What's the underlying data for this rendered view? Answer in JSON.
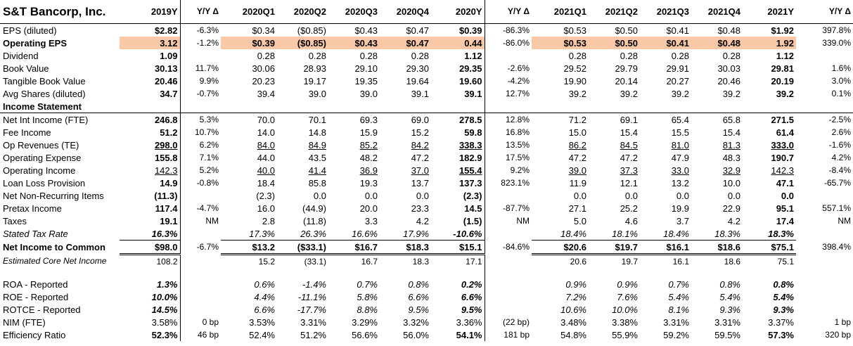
{
  "title": "S&T Bancorp, Inc.",
  "columns": [
    "2019Y",
    "Y/Y Δ",
    "2020Q1",
    "2020Q2",
    "2020Q3",
    "2020Q4",
    "2020Y",
    "Y/Y Δ",
    "2021Q1",
    "2021Q2",
    "2021Q3",
    "2021Q4",
    "2021Y",
    "Y/Y Δ"
  ],
  "highlight_color": "#f9c8a6",
  "rows": {
    "eps": {
      "label": "EPS (diluted)",
      "v": [
        "$2.82",
        "-6.3%",
        "$0.34",
        "($0.85)",
        "$0.43",
        "$0.47",
        "$0.39",
        "-86.3%",
        "$0.53",
        "$0.50",
        "$0.41",
        "$0.48",
        "$1.92",
        "397.8%"
      ]
    },
    "opeps": {
      "label": "Operating EPS",
      "v": [
        "3.12",
        "-1.2%",
        "$0.39",
        "($0.85)",
        "$0.43",
        "$0.47",
        "0.44",
        "-86.0%",
        "$0.53",
        "$0.50",
        "$0.41",
        "$0.48",
        "1.92",
        "339.0%"
      ]
    },
    "div": {
      "label": "Dividend",
      "v": [
        "1.09",
        "",
        "0.28",
        "0.28",
        "0.28",
        "0.28",
        "1.12",
        "",
        "0.28",
        "0.28",
        "0.28",
        "0.28",
        "1.12",
        ""
      ]
    },
    "bv": {
      "label": "Book Value",
      "v": [
        "30.13",
        "11.7%",
        "30.06",
        "28.93",
        "29.10",
        "29.30",
        "29.35",
        "-2.6%",
        "29.52",
        "29.79",
        "29.91",
        "30.03",
        "29.81",
        "1.6%"
      ]
    },
    "tbv": {
      "label": "Tangible Book Value",
      "v": [
        "20.46",
        "9.9%",
        "20.23",
        "19.17",
        "19.35",
        "19.64",
        "19.60",
        "-4.2%",
        "19.90",
        "20.14",
        "20.27",
        "20.46",
        "20.19",
        "3.0%"
      ]
    },
    "shares": {
      "label": "Avg Shares (diluted)",
      "v": [
        "34.7",
        "-0.7%",
        "39.4",
        "39.0",
        "39.0",
        "39.1",
        "39.1",
        "12.7%",
        "39.2",
        "39.2",
        "39.2",
        "39.2",
        "39.2",
        "0.1%"
      ]
    },
    "is": {
      "label": "Income Statement"
    },
    "nii": {
      "label": "Net Int Income (FTE)",
      "v": [
        "246.8",
        "5.3%",
        "70.0",
        "70.1",
        "69.3",
        "69.0",
        "278.5",
        "12.8%",
        "71.2",
        "69.1",
        "65.4",
        "65.8",
        "271.5",
        "-2.5%"
      ]
    },
    "fee": {
      "label": "Fee Income",
      "v": [
        "51.2",
        "10.7%",
        "14.0",
        "14.8",
        "15.9",
        "15.2",
        "59.8",
        "16.8%",
        "15.0",
        "15.4",
        "15.5",
        "15.4",
        "61.4",
        "2.6%"
      ]
    },
    "oprev": {
      "label": "Op Revenues (TE)",
      "v": [
        "298.0",
        "6.2%",
        "84.0",
        "84.9",
        "85.2",
        "84.2",
        "338.3",
        "13.5%",
        "86.2",
        "84.5",
        "81.0",
        "81.3",
        "333.0",
        "-1.6%"
      ]
    },
    "opex": {
      "label": "Operating Expense",
      "v": [
        "155.8",
        "7.1%",
        "44.0",
        "43.5",
        "48.2",
        "47.2",
        "182.9",
        "17.5%",
        "47.2",
        "47.2",
        "47.9",
        "48.3",
        "190.7",
        "4.2%"
      ]
    },
    "opinc": {
      "label": "Operating Income",
      "v": [
        "142.3",
        "5.2%",
        "40.0",
        "41.4",
        "36.9",
        "37.0",
        "155.4",
        "9.2%",
        "39.0",
        "37.3",
        "33.0",
        "32.9",
        "142.3",
        "-8.4%"
      ]
    },
    "llp": {
      "label": "Loan Loss Provision",
      "v": [
        "14.9",
        "-0.8%",
        "18.4",
        "85.8",
        "19.3",
        "13.7",
        "137.3",
        "823.1%",
        "11.9",
        "12.1",
        "13.2",
        "10.0",
        "47.1",
        "-65.7%"
      ]
    },
    "nnr": {
      "label": "Net Non-Recurring Items",
      "v": [
        "(11.3)",
        "",
        "(2.3)",
        "0.0",
        "0.0",
        "0.0",
        "(2.3)",
        "",
        "0.0",
        "0.0",
        "0.0",
        "0.0",
        "0.0",
        ""
      ]
    },
    "pretax": {
      "label": "Pretax Income",
      "v": [
        "117.4",
        "-4.7%",
        "16.0",
        "(44.9)",
        "20.0",
        "23.3",
        "14.5",
        "-87.7%",
        "27.1",
        "25.2",
        "19.9",
        "22.9",
        "95.1",
        "557.1%"
      ]
    },
    "taxes": {
      "label": "Taxes",
      "v": [
        "19.1",
        "NM",
        "2.8",
        "(11.8)",
        "3.3",
        "4.2",
        "(1.5)",
        "NM",
        "5.0",
        "4.6",
        "3.7",
        "4.2",
        "17.4",
        "NM"
      ]
    },
    "taxrate": {
      "label": "Stated Tax Rate",
      "v": [
        "16.3%",
        "",
        "17.3%",
        "26.3%",
        "16.6%",
        "17.9%",
        "-10.6%",
        "",
        "18.4%",
        "18.1%",
        "18.4%",
        "18.3%",
        "18.3%",
        ""
      ]
    },
    "ni": {
      "label": "Net Income to Common",
      "v": [
        "$98.0",
        "-6.7%",
        "$13.2",
        "($33.1)",
        "$16.7",
        "$18.3",
        "$15.1",
        "-84.6%",
        "$20.6",
        "$19.7",
        "$16.1",
        "$18.6",
        "$75.1",
        "398.4%"
      ]
    },
    "core": {
      "label": "Estimated Core Net Income",
      "v": [
        "108.2",
        "",
        "15.2",
        "(33.1)",
        "16.7",
        "18.3",
        "17.1",
        "",
        "20.6",
        "19.7",
        "16.1",
        "18.6",
        "75.1",
        ""
      ]
    },
    "roa": {
      "label": "ROA - Reported",
      "v": [
        "1.3%",
        "",
        "0.6%",
        "-1.4%",
        "0.7%",
        "0.8%",
        "0.2%",
        "",
        "0.9%",
        "0.9%",
        "0.7%",
        "0.8%",
        "0.8%",
        ""
      ]
    },
    "roe": {
      "label": "ROE - Reported",
      "v": [
        "10.0%",
        "",
        "4.4%",
        "-11.1%",
        "5.8%",
        "6.6%",
        "6.6%",
        "",
        "7.2%",
        "7.6%",
        "5.4%",
        "5.4%",
        "5.4%",
        ""
      ]
    },
    "rotce": {
      "label": "ROTCE - Reported",
      "v": [
        "14.5%",
        "",
        "6.6%",
        "-17.7%",
        "8.8%",
        "9.5%",
        "9.5%",
        "",
        "10.6%",
        "10.0%",
        "8.1%",
        "9.3%",
        "9.3%",
        ""
      ]
    },
    "nim": {
      "label": "NIM (FTE)",
      "v": [
        "3.58%",
        "0 bp",
        "3.53%",
        "3.31%",
        "3.29%",
        "3.32%",
        "3.36%",
        "(22 bp)",
        "3.48%",
        "3.38%",
        "3.31%",
        "3.31%",
        "3.37%",
        "1 bp"
      ]
    },
    "eff": {
      "label": "Efficiency Ratio",
      "v": [
        "52.3%",
        "46 bp",
        "52.4%",
        "51.2%",
        "56.6%",
        "56.0%",
        "54.1%",
        "181 bp",
        "54.8%",
        "55.9%",
        "59.2%",
        "59.5%",
        "57.3%",
        "320 bp"
      ]
    }
  }
}
